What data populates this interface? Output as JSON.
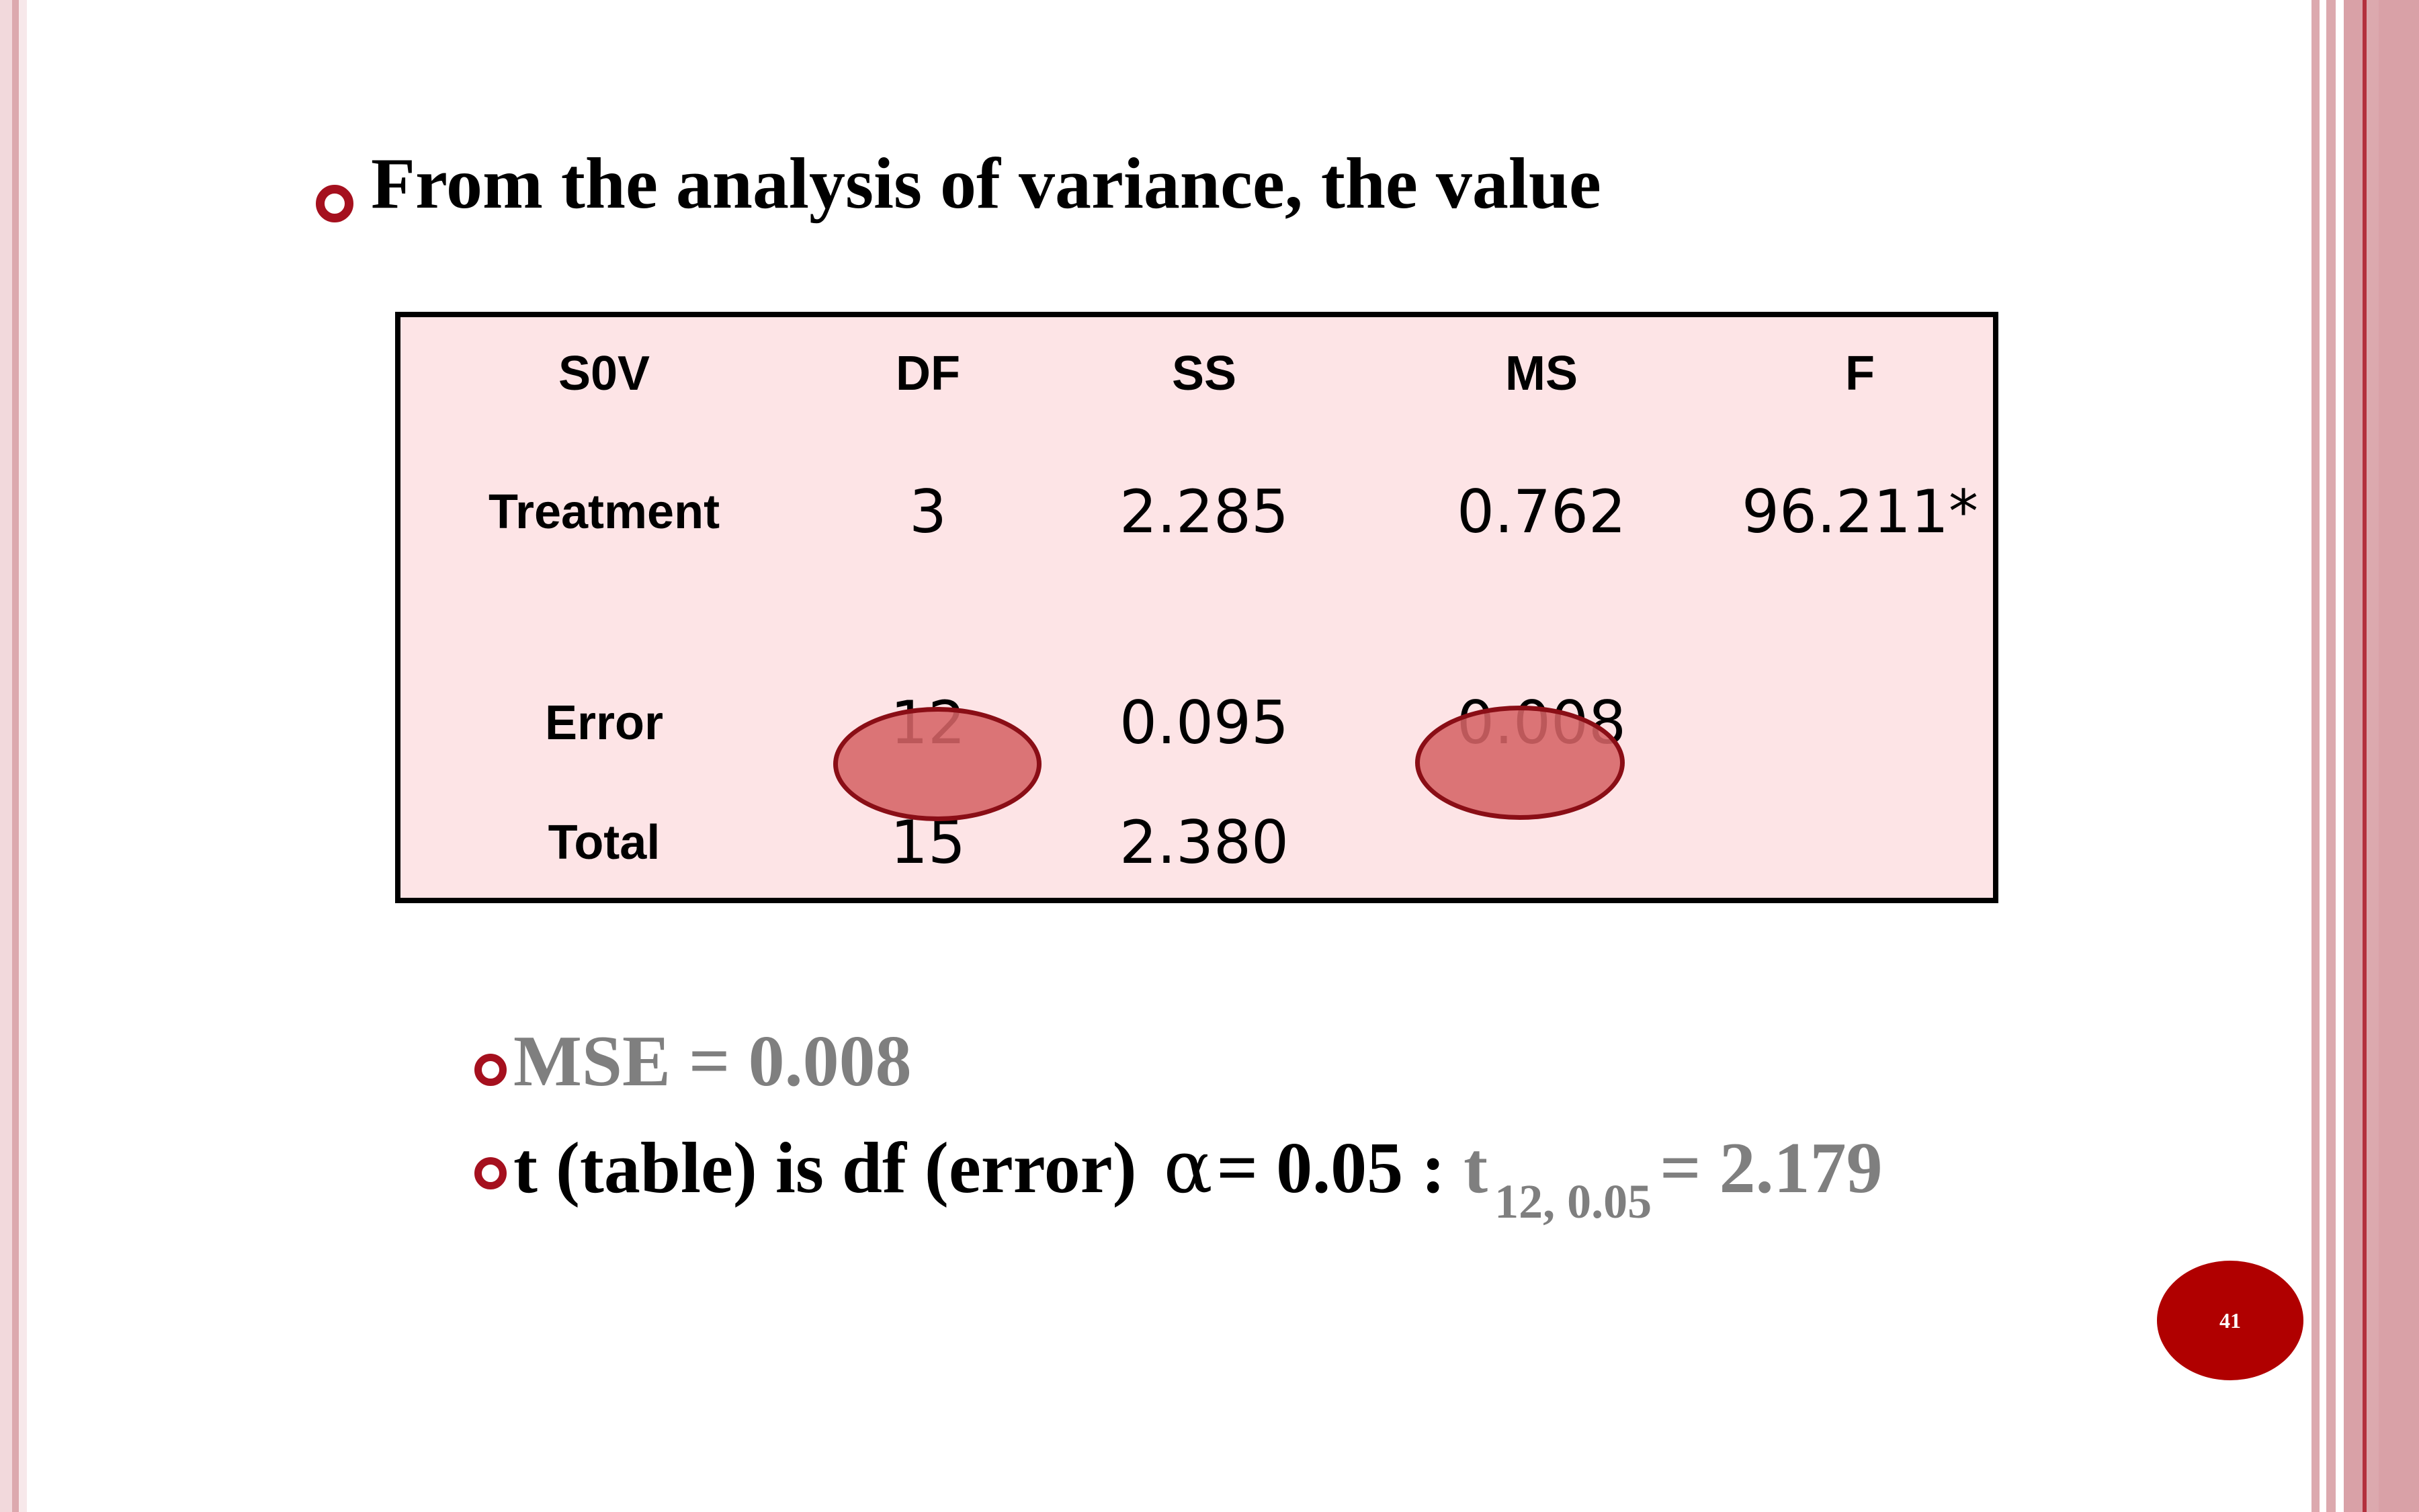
{
  "slide": {
    "heading": "From the analysis of variance, the value",
    "page_number": "41"
  },
  "table": {
    "headers": [
      "S0V",
      "DF",
      "SS",
      "MS",
      "F"
    ],
    "rows": [
      {
        "source": "Treatment",
        "df": "3",
        "ss": "2.285",
        "ms": "0.762",
        "f": "96.211*"
      },
      {
        "source": "Error",
        "df": "12",
        "ss": "0.095",
        "ms": "0.008",
        "f": ""
      },
      {
        "source": "Total",
        "df": "15",
        "ss": "2.380",
        "ms": "",
        "f": ""
      }
    ]
  },
  "bullets": {
    "mse": "MSE = 0.008",
    "t_text": "t (table) is df (error)",
    "alpha_symbol": "α",
    "alpha_value": "= 0.05 :",
    "t_symbol": "t",
    "t_subscript": "12, 0.05",
    "t_result": "= 2.179"
  },
  "colors": {
    "accent": "#a5101e",
    "table_fill": "#fde4e6",
    "highlight": "#d66466",
    "muted_text": "#7f7f7f",
    "badge": "#b00000"
  }
}
